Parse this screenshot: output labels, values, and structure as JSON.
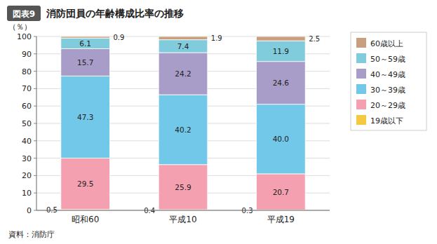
{
  "chart_data": {
    "type": "bar",
    "stacked": true,
    "title": "消防団員の年齢構成比率の推移",
    "annotations": [
      "図表9",
      "資料：消防庁"
    ],
    "ylabel": "（％）",
    "categories": [
      "昭和60",
      "平成10",
      "平成19"
    ],
    "series": [
      {
        "name": "19歳以下",
        "values": [
          0.5,
          0.4,
          0.3
        ],
        "color": "#F5C842"
      },
      {
        "name": "20～29歳",
        "values": [
          29.5,
          25.9,
          20.7
        ],
        "color": "#F4A0B0"
      },
      {
        "name": "30～39歳",
        "values": [
          47.3,
          40.2,
          40.0
        ],
        "value_labels": [
          "47.3",
          "40.2",
          "40.0"
        ],
        "color": "#72C8E8"
      },
      {
        "name": "40～49歳",
        "values": [
          15.7,
          24.2,
          24.6
        ],
        "color": "#A89CC8"
      },
      {
        "name": "50～59歳",
        "values": [
          6.1,
          7.4,
          11.9
        ],
        "color": "#80CCDC"
      },
      {
        "name": "60歳以上",
        "values": [
          0.9,
          1.9,
          2.5
        ],
        "color": "#C8A080"
      }
    ],
    "ylim": [
      0,
      100
    ],
    "yticks": [
      0,
      10,
      20,
      30,
      40,
      50,
      60,
      70,
      80,
      90,
      100
    ],
    "grid": true,
    "legend": "right",
    "data_labels": true
  }
}
